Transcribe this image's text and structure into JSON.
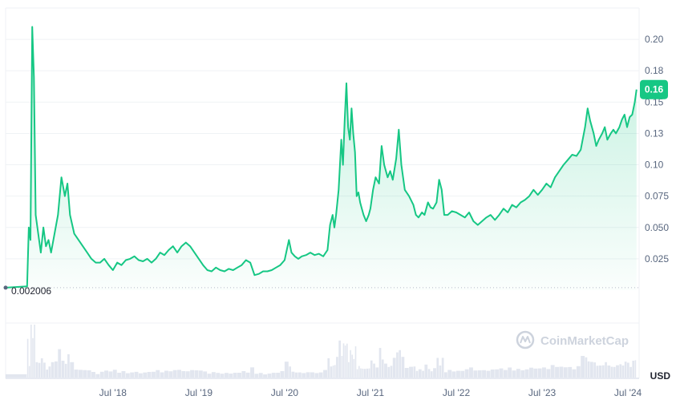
{
  "chart_data": {
    "type": "area",
    "currency": "USD",
    "start_label": "0.002006",
    "current_label": "0.16",
    "watermark": "CoinMarketCap",
    "colors": {
      "line": "#16c784",
      "badge": "#16c784",
      "volume": "#cfd6e4",
      "grid": "#eff2f5",
      "text": "#58667e"
    },
    "y_ticks": [
      {
        "v": 0.025,
        "label": "0.025"
      },
      {
        "v": 0.05,
        "label": "0.050"
      },
      {
        "v": 0.075,
        "label": "0.075"
      },
      {
        "v": 0.1,
        "label": "0.10"
      },
      {
        "v": 0.125,
        "label": "0.13"
      },
      {
        "v": 0.15,
        "label": "0.15"
      },
      {
        "v": 0.175,
        "label": "0.18"
      },
      {
        "v": 0.2,
        "label": "0.20"
      }
    ],
    "ylim": [
      0,
      0.225
    ],
    "x_ticks": [
      {
        "t": 2018.5,
        "label": "Jul '18"
      },
      {
        "t": 2019.5,
        "label": "Jul '19"
      },
      {
        "t": 2020.5,
        "label": "Jul '20"
      },
      {
        "t": 2021.5,
        "label": "Jul '21"
      },
      {
        "t": 2022.5,
        "label": "Jul '22"
      },
      {
        "t": 2023.5,
        "label": "Jul '23"
      },
      {
        "t": 2024.5,
        "label": "Jul '24"
      }
    ],
    "xlim": [
      2017.25,
      2024.63
    ],
    "series": [
      {
        "points": [
          [
            2017.25,
            0.002006
          ],
          [
            2017.5,
            0.003
          ],
          [
            2017.52,
            0.05
          ],
          [
            2017.54,
            0.04
          ],
          [
            2017.56,
            0.21
          ],
          [
            2017.58,
            0.17
          ],
          [
            2017.6,
            0.06
          ],
          [
            2017.63,
            0.045
          ],
          [
            2017.66,
            0.03
          ],
          [
            2017.69,
            0.05
          ],
          [
            2017.72,
            0.035
          ],
          [
            2017.75,
            0.04
          ],
          [
            2017.78,
            0.03
          ],
          [
            2017.82,
            0.045
          ],
          [
            2017.86,
            0.06
          ],
          [
            2017.9,
            0.09
          ],
          [
            2017.94,
            0.075
          ],
          [
            2017.97,
            0.085
          ],
          [
            2018.0,
            0.06
          ],
          [
            2018.05,
            0.045
          ],
          [
            2018.1,
            0.04
          ],
          [
            2018.15,
            0.035
          ],
          [
            2018.2,
            0.03
          ],
          [
            2018.25,
            0.025
          ],
          [
            2018.3,
            0.022
          ],
          [
            2018.35,
            0.022
          ],
          [
            2018.4,
            0.025
          ],
          [
            2018.45,
            0.02
          ],
          [
            2018.5,
            0.016
          ],
          [
            2018.55,
            0.022
          ],
          [
            2018.6,
            0.02
          ],
          [
            2018.65,
            0.024
          ],
          [
            2018.7,
            0.025
          ],
          [
            2018.75,
            0.027
          ],
          [
            2018.8,
            0.024
          ],
          [
            2018.85,
            0.023
          ],
          [
            2018.9,
            0.025
          ],
          [
            2018.95,
            0.022
          ],
          [
            2019.0,
            0.025
          ],
          [
            2019.05,
            0.03
          ],
          [
            2019.1,
            0.028
          ],
          [
            2019.15,
            0.032
          ],
          [
            2019.2,
            0.035
          ],
          [
            2019.25,
            0.03
          ],
          [
            2019.3,
            0.035
          ],
          [
            2019.35,
            0.038
          ],
          [
            2019.4,
            0.035
          ],
          [
            2019.45,
            0.03
          ],
          [
            2019.5,
            0.025
          ],
          [
            2019.55,
            0.02
          ],
          [
            2019.6,
            0.016
          ],
          [
            2019.65,
            0.015
          ],
          [
            2019.7,
            0.018
          ],
          [
            2019.75,
            0.016
          ],
          [
            2019.8,
            0.015
          ],
          [
            2019.85,
            0.017
          ],
          [
            2019.9,
            0.016
          ],
          [
            2019.95,
            0.018
          ],
          [
            2020.0,
            0.02
          ],
          [
            2020.05,
            0.024
          ],
          [
            2020.1,
            0.022
          ],
          [
            2020.15,
            0.012
          ],
          [
            2020.2,
            0.013
          ],
          [
            2020.25,
            0.015
          ],
          [
            2020.3,
            0.015
          ],
          [
            2020.35,
            0.016
          ],
          [
            2020.4,
            0.018
          ],
          [
            2020.45,
            0.02
          ],
          [
            2020.5,
            0.024
          ],
          [
            2020.55,
            0.04
          ],
          [
            2020.58,
            0.03
          ],
          [
            2020.62,
            0.027
          ],
          [
            2020.66,
            0.025
          ],
          [
            2020.7,
            0.027
          ],
          [
            2020.75,
            0.028
          ],
          [
            2020.8,
            0.03
          ],
          [
            2020.85,
            0.028
          ],
          [
            2020.9,
            0.029
          ],
          [
            2020.95,
            0.027
          ],
          [
            2021.0,
            0.032
          ],
          [
            2021.03,
            0.052
          ],
          [
            2021.06,
            0.06
          ],
          [
            2021.08,
            0.05
          ],
          [
            2021.1,
            0.06
          ],
          [
            2021.13,
            0.08
          ],
          [
            2021.16,
            0.12
          ],
          [
            2021.18,
            0.1
          ],
          [
            2021.2,
            0.135
          ],
          [
            2021.22,
            0.165
          ],
          [
            2021.24,
            0.13
          ],
          [
            2021.26,
            0.12
          ],
          [
            2021.28,
            0.145
          ],
          [
            2021.3,
            0.125
          ],
          [
            2021.32,
            0.11
          ],
          [
            2021.34,
            0.075
          ],
          [
            2021.36,
            0.078
          ],
          [
            2021.38,
            0.07
          ],
          [
            2021.4,
            0.065
          ],
          [
            2021.42,
            0.06
          ],
          [
            2021.45,
            0.055
          ],
          [
            2021.48,
            0.06
          ],
          [
            2021.5,
            0.065
          ],
          [
            2021.53,
            0.08
          ],
          [
            2021.56,
            0.09
          ],
          [
            2021.6,
            0.085
          ],
          [
            2021.63,
            0.115
          ],
          [
            2021.66,
            0.1
          ],
          [
            2021.7,
            0.09
          ],
          [
            2021.73,
            0.095
          ],
          [
            2021.76,
            0.088
          ],
          [
            2021.8,
            0.105
          ],
          [
            2021.83,
            0.128
          ],
          [
            2021.86,
            0.1
          ],
          [
            2021.9,
            0.08
          ],
          [
            2021.95,
            0.075
          ],
          [
            2022.0,
            0.068
          ],
          [
            2022.03,
            0.06
          ],
          [
            2022.06,
            0.058
          ],
          [
            2022.1,
            0.062
          ],
          [
            2022.13,
            0.06
          ],
          [
            2022.17,
            0.07
          ],
          [
            2022.2,
            0.066
          ],
          [
            2022.23,
            0.065
          ],
          [
            2022.27,
            0.07
          ],
          [
            2022.3,
            0.088
          ],
          [
            2022.33,
            0.08
          ],
          [
            2022.36,
            0.06
          ],
          [
            2022.4,
            0.06
          ],
          [
            2022.45,
            0.063
          ],
          [
            2022.5,
            0.062
          ],
          [
            2022.55,
            0.06
          ],
          [
            2022.6,
            0.058
          ],
          [
            2022.65,
            0.062
          ],
          [
            2022.7,
            0.055
          ],
          [
            2022.75,
            0.052
          ],
          [
            2022.8,
            0.055
          ],
          [
            2022.85,
            0.058
          ],
          [
            2022.9,
            0.06
          ],
          [
            2022.95,
            0.056
          ],
          [
            2023.0,
            0.06
          ],
          [
            2023.05,
            0.065
          ],
          [
            2023.1,
            0.062
          ],
          [
            2023.15,
            0.068
          ],
          [
            2023.2,
            0.066
          ],
          [
            2023.25,
            0.07
          ],
          [
            2023.3,
            0.072
          ],
          [
            2023.35,
            0.075
          ],
          [
            2023.4,
            0.08
          ],
          [
            2023.45,
            0.076
          ],
          [
            2023.5,
            0.08
          ],
          [
            2023.55,
            0.085
          ],
          [
            2023.6,
            0.082
          ],
          [
            2023.65,
            0.09
          ],
          [
            2023.7,
            0.095
          ],
          [
            2023.75,
            0.1
          ],
          [
            2023.8,
            0.104
          ],
          [
            2023.85,
            0.108
          ],
          [
            2023.9,
            0.107
          ],
          [
            2023.95,
            0.112
          ],
          [
            2024.0,
            0.13
          ],
          [
            2024.03,
            0.145
          ],
          [
            2024.06,
            0.135
          ],
          [
            2024.1,
            0.125
          ],
          [
            2024.13,
            0.115
          ],
          [
            2024.16,
            0.12
          ],
          [
            2024.2,
            0.125
          ],
          [
            2024.23,
            0.13
          ],
          [
            2024.26,
            0.12
          ],
          [
            2024.3,
            0.125
          ],
          [
            2024.33,
            0.128
          ],
          [
            2024.36,
            0.125
          ],
          [
            2024.4,
            0.13
          ],
          [
            2024.43,
            0.136
          ],
          [
            2024.46,
            0.14
          ],
          [
            2024.49,
            0.13
          ],
          [
            2024.52,
            0.138
          ],
          [
            2024.55,
            0.14
          ],
          [
            2024.58,
            0.15
          ],
          [
            2024.6,
            0.16
          ]
        ]
      }
    ]
  }
}
